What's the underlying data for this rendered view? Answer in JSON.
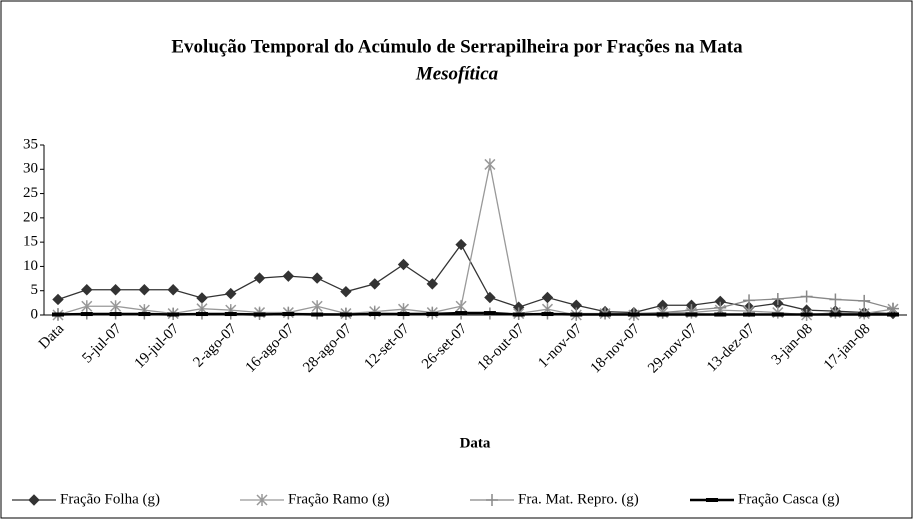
{
  "chart_data": {
    "type": "line",
    "title": "Evolução Temporal do Acúmulo de Serrapilheira por Frações na Mata",
    "subtitle": "Mesofítica",
    "x_label": "Data",
    "categories": [
      "Data",
      null,
      "5-jul-07",
      null,
      "19-jul-07",
      null,
      "2-ago-07",
      null,
      "16-ago-07",
      null,
      "28-ago-07",
      null,
      "12-set-07",
      null,
      "26-set-07",
      null,
      "18-out-07",
      null,
      "1-nov-07",
      null,
      "18-nov-07",
      null,
      "29-nov-07",
      null,
      "13-dez-07",
      null,
      "3-jan-08",
      null,
      "17-jan-08",
      null
    ],
    "ylim": [
      0,
      35
    ],
    "yticks": [
      0,
      5,
      10,
      15,
      20,
      25,
      30,
      35
    ],
    "grid": false,
    "legend": "bottom",
    "series": [
      {
        "name": "Fração Folha (g)",
        "color": "#333333",
        "marker": "diamond",
        "values": [
          3.2,
          5.2,
          5.2,
          5.2,
          5.2,
          3.5,
          4.4,
          7.6,
          8,
          7.6,
          4.8,
          6.4,
          10.4,
          6.4,
          14.5,
          3.6,
          1.6,
          3.6,
          2,
          0.7,
          0.5,
          2,
          2,
          2.8,
          1.6,
          2.4,
          1,
          0.8,
          0.5,
          0.3
        ]
      },
      {
        "name": "Fração Ramo (g)",
        "color": "#999999",
        "marker": "asterisk",
        "values": [
          0,
          1.8,
          1.8,
          1,
          0.3,
          1.3,
          1,
          0.5,
          0.5,
          1.8,
          0.3,
          0.7,
          1.2,
          0.5,
          1.8,
          31,
          0.3,
          1.2,
          0,
          0.3,
          0,
          0.5,
          0.5,
          1,
          0.8,
          0.5,
          0,
          0.5,
          0.3,
          1.2
        ]
      },
      {
        "name": "Fra. Mat. Repro. (g)",
        "color": "#888888",
        "marker": "plus",
        "values": [
          0.2,
          0.3,
          0.3,
          0.3,
          0.2,
          0.3,
          0.3,
          0.2,
          0.3,
          0.3,
          0.2,
          0.3,
          0.3,
          0.3,
          0.3,
          0.3,
          0.2,
          0.3,
          0.3,
          0.3,
          0.3,
          0.5,
          1,
          1.5,
          3,
          3.3,
          3.8,
          3.2,
          2.9,
          1.3
        ]
      },
      {
        "name": "Fração Casca (g)",
        "color": "#000000",
        "marker": "dash",
        "values": [
          0.1,
          0.2,
          0.2,
          0.2,
          0.1,
          0.2,
          0.2,
          0.1,
          0.2,
          0.1,
          0.1,
          0.2,
          0.2,
          0.2,
          0.4,
          0.4,
          0.1,
          0.2,
          0.1,
          0.1,
          0.1,
          0.1,
          0.1,
          0.1,
          0.1,
          0.1,
          0.1,
          0.1,
          0.1,
          0.1
        ]
      }
    ]
  }
}
